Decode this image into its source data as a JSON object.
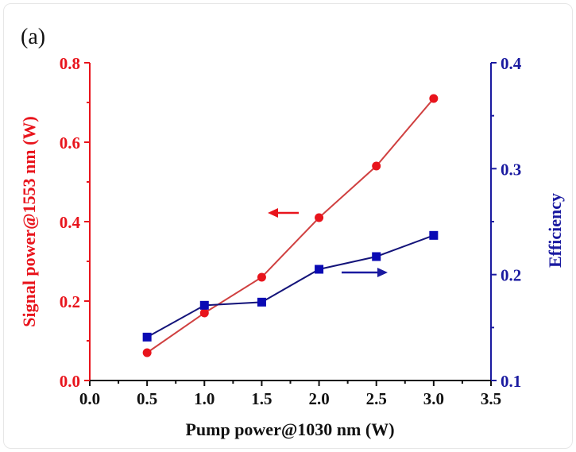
{
  "chart_data": {
    "type": "line",
    "panel_label": "(a)",
    "xlabel": "Pump power@1030 nm (W)",
    "ylabel": "Signal power@1553 nm (W)",
    "ylabel_right": "Efficiency",
    "xlim": [
      0.0,
      3.5
    ],
    "ylim": [
      0.0,
      0.8
    ],
    "ylim_right": [
      0.1,
      0.4
    ],
    "xticks": [
      "0.0",
      "0.5",
      "1.0",
      "1.5",
      "2.0",
      "2.5",
      "3.0",
      "3.5"
    ],
    "yticks": [
      "0.0",
      "0.2",
      "0.4",
      "0.6",
      "0.8"
    ],
    "yticks_right": [
      "0.1",
      "0.2",
      "0.3",
      "0.4"
    ],
    "x": [
      0.5,
      1.0,
      1.5,
      2.0,
      2.5,
      3.0
    ],
    "series": [
      {
        "name": "Signal power",
        "axis": "left",
        "marker": "circle",
        "color": "#e8141c",
        "values": [
          0.07,
          0.17,
          0.26,
          0.41,
          0.54,
          0.71
        ]
      },
      {
        "name": "Efficiency",
        "axis": "right",
        "marker": "square",
        "color": "#0a0ab4",
        "values": [
          0.141,
          0.171,
          0.174,
          0.205,
          0.217,
          0.237
        ]
      }
    ],
    "colors": {
      "left_axis": "#e8141c",
      "right_axis": "#1a1aa0",
      "bottom_axis": "#111111"
    },
    "grid": false
  }
}
